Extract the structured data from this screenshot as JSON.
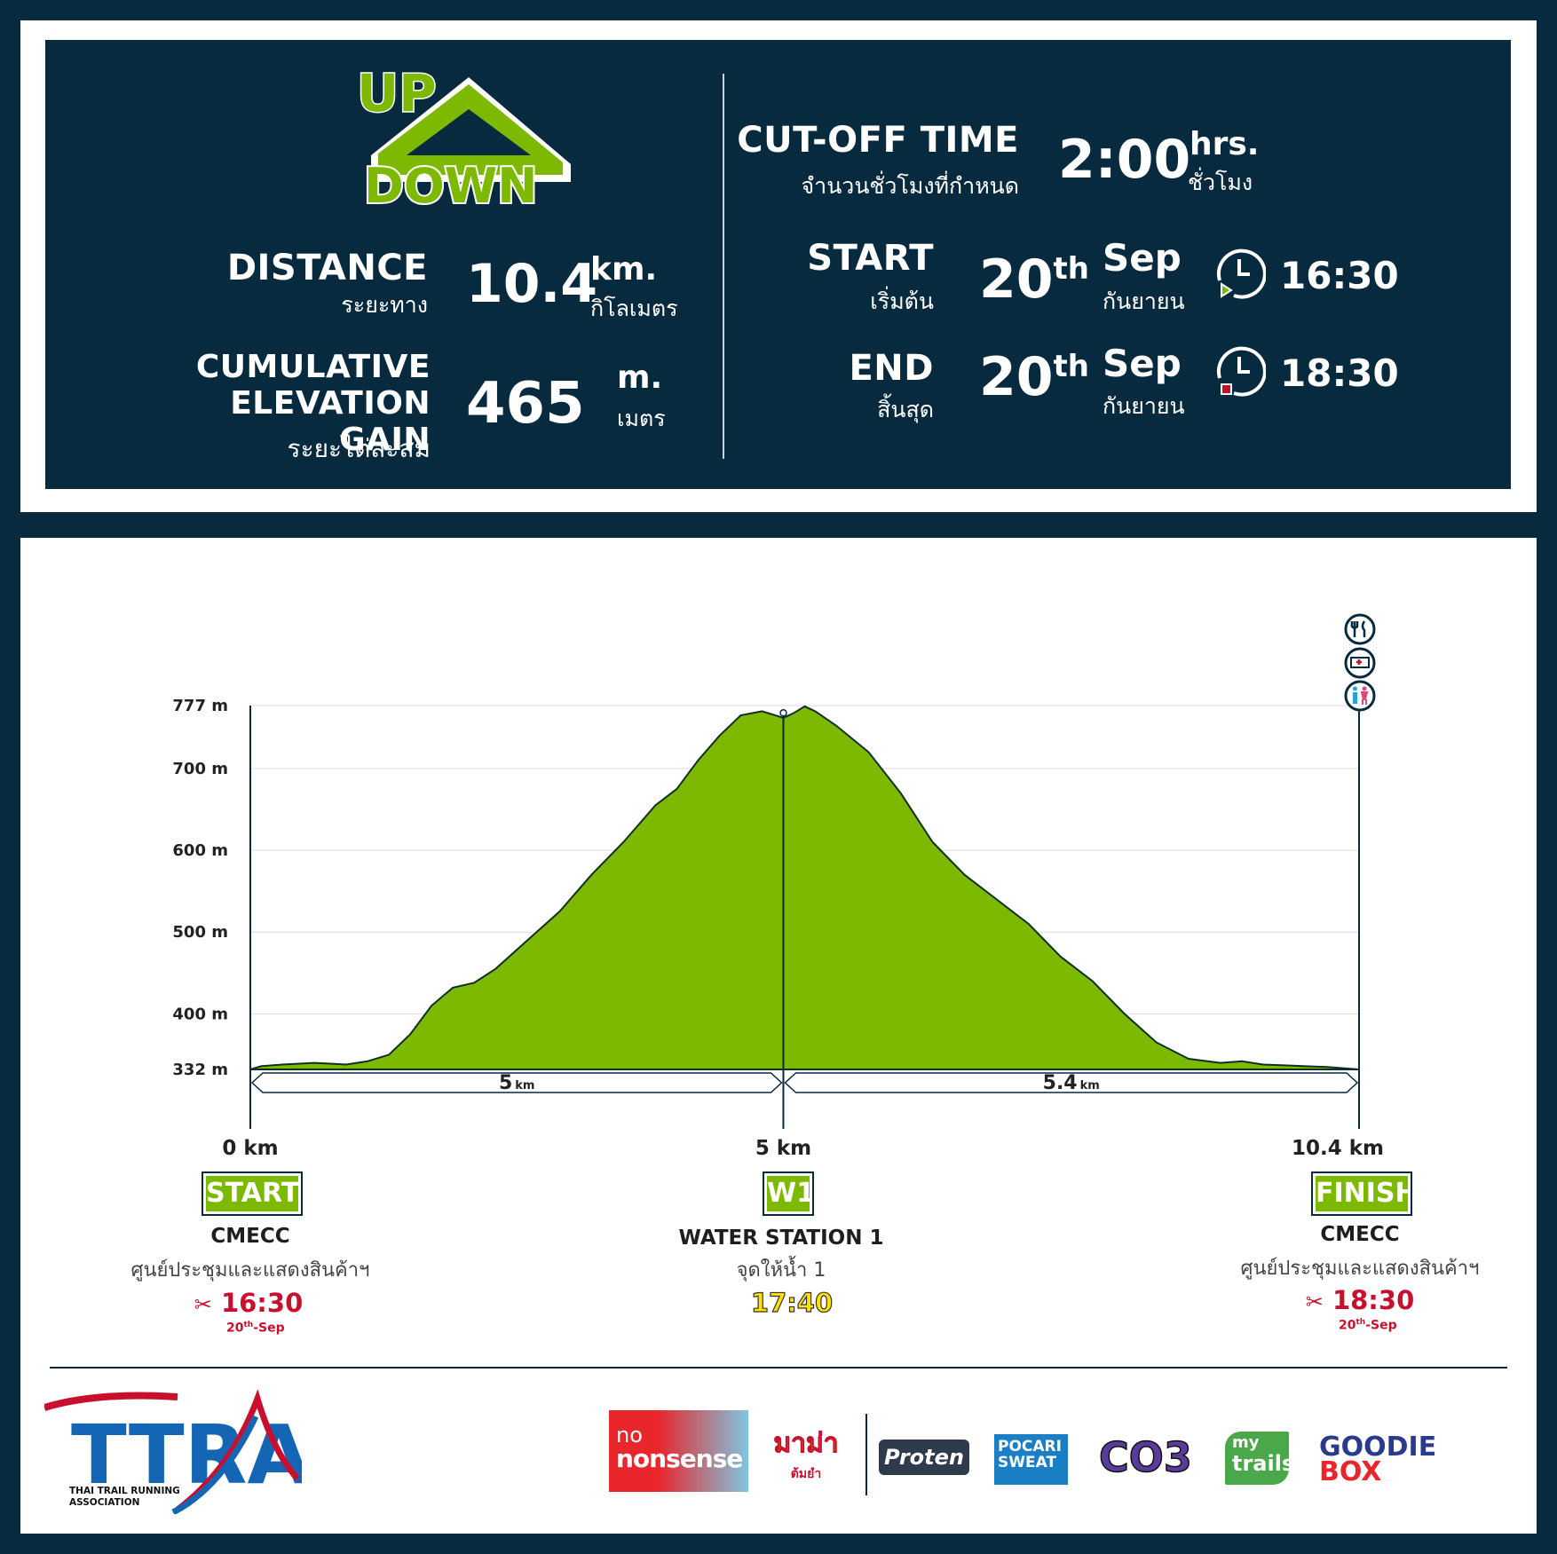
{
  "brand": {
    "logo_top": "UP",
    "logo_bottom": "DOWN"
  },
  "stats": {
    "distance": {
      "label": "DISTANCE",
      "label_th": "ระยะทาง",
      "value": "10.4",
      "unit": "km.",
      "unit_th": "กิโลเมตร"
    },
    "elevation": {
      "label_1": "CUMULATIVE",
      "label_2": "ELEVATION GAIN",
      "label_th": "ระยะไต่สะสม",
      "value": "465",
      "unit": "m.",
      "unit_th": "เมตร"
    }
  },
  "schedule": {
    "cutoff": {
      "label": "CUT-OFF TIME",
      "label_th": "จำนวนชั่วโมงที่กำหนด",
      "value": "2:00",
      "unit": "hrs.",
      "unit_th": "ชั่วโมง"
    },
    "start": {
      "label": "START",
      "label_th": "เริ่มต้น",
      "day": "20",
      "suffix": "th",
      "month": "Sep",
      "month_th": "กันยายน",
      "time": "16:30"
    },
    "end": {
      "label": "END",
      "label_th": "สิ้นสุด",
      "day": "20",
      "suffix": "th",
      "month": "Sep",
      "month_th": "กันยายน",
      "time": "18:30"
    }
  },
  "chart_data": {
    "type": "area",
    "y_ticks": [
      "777 m",
      "700 m",
      "600 m",
      "500 m",
      "400 m",
      "332 m"
    ],
    "ylim": [
      332,
      777
    ],
    "xlim": [
      0,
      10.4
    ],
    "x_ticks": [
      "0 km",
      "5 km",
      "10.4 km"
    ],
    "series": [
      {
        "color": "#7db900",
        "x": [
          0,
          0.1,
          0.3,
          0.6,
          0.9,
          1.1,
          1.3,
          1.5,
          1.7,
          1.9,
          2.1,
          2.3,
          2.6,
          2.9,
          3.2,
          3.5,
          3.8,
          4.0,
          4.2,
          4.4,
          4.6,
          4.8,
          5.0,
          5.1,
          5.2,
          5.3,
          5.5,
          5.8,
          6.1,
          6.4,
          6.7,
          7.0,
          7.3,
          7.6,
          7.9,
          8.2,
          8.5,
          8.8,
          9.1,
          9.3,
          9.5,
          9.7,
          9.9,
          10.1,
          10.4
        ],
        "values": [
          332,
          336,
          338,
          340,
          338,
          342,
          350,
          375,
          410,
          432,
          438,
          455,
          490,
          525,
          570,
          610,
          655,
          675,
          710,
          740,
          765,
          770,
          762,
          768,
          776,
          770,
          752,
          720,
          670,
          610,
          570,
          540,
          510,
          470,
          440,
          400,
          365,
          345,
          340,
          342,
          338,
          337,
          336,
          335,
          332
        ]
      }
    ],
    "segments": [
      {
        "value": "5",
        "unit": "km"
      },
      {
        "value": "5.4",
        "unit": "km"
      }
    ]
  },
  "checkpoints": [
    {
      "code": "START",
      "name": "CMECC",
      "name_th": "ศูนย์ประชุมและแสดงสินค้าฯ",
      "time": "16:30",
      "date_day": "20",
      "date_suffix": "th",
      "date_rest": "-Sep"
    },
    {
      "code": "W1",
      "name": "WATER STATION 1",
      "name_th": "จุดให้น้ำ 1",
      "time": "17:40"
    },
    {
      "code": "FINISH",
      "name": "CMECC",
      "name_th": "ศูนย์ประชุมและแสดงสินค้าฯ",
      "time": "18:30",
      "date_day": "20",
      "date_suffix": "th",
      "date_rest": "-Sep"
    }
  ],
  "footer": {
    "org_logo": "TTRA",
    "org_name_1": "THAI TRAIL RUNNING",
    "org_name_2": "ASSOCIATION",
    "sponsors": {
      "nononsense_1": "no",
      "nononsense_2": "nonsense",
      "mama_1": "มาม่า",
      "mama_2": "ต้มยำ",
      "proten": "Proten",
      "pocari_1": "POCARI",
      "pocari_2": "SWEAT",
      "cots": "CO3",
      "mytrails_1": "my",
      "mytrails_2": "trails",
      "goodie_1": "GOODIE",
      "goodie_2": "BOX"
    }
  },
  "colors": {
    "navy": "#072a3e",
    "green": "#7db900",
    "red": "#c8102e"
  }
}
